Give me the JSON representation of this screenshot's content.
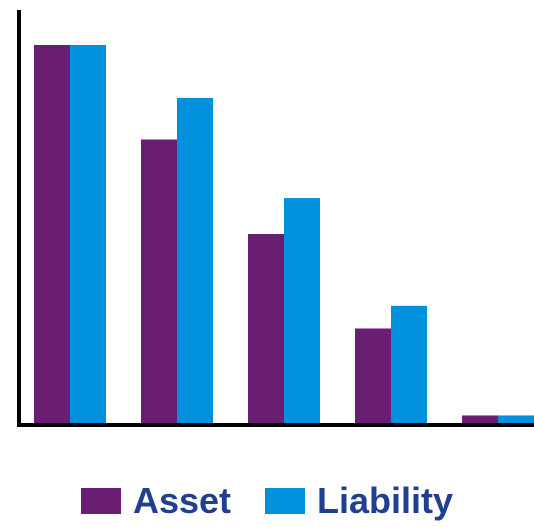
{
  "chart_data": {
    "type": "bar",
    "categories": [
      "",
      "",
      "",
      "",
      ""
    ],
    "series": [
      {
        "name": "Asset",
        "values": [
          100,
          75,
          50,
          25,
          2
        ]
      },
      {
        "name": "Liability",
        "values": [
          100,
          86,
          59.5,
          31,
          2
        ]
      }
    ],
    "ylim": [
      0,
      100
    ],
    "grid": false,
    "legend": "bottom",
    "colors": {
      "Asset": "#6a1e73",
      "Liability": "#0090dc",
      "axis": "#000000",
      "legend_text": "#1f3f8f"
    }
  }
}
